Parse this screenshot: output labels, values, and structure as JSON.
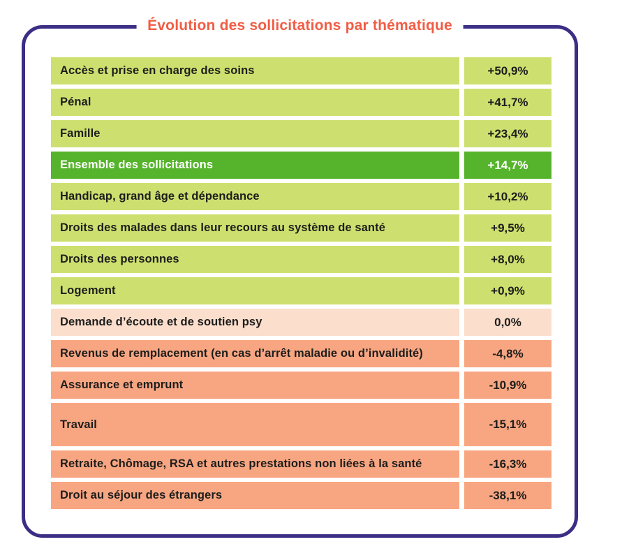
{
  "title": "Évolution des sollicitations par thématique",
  "colors": {
    "border_purple": "#3b2e85",
    "title_coral": "#f15c44",
    "positive_green": "#cde06f",
    "total_green": "#56b42c",
    "zero_peach": "#fcdecd",
    "negative_salmon": "#f8a682",
    "text_dark": "#1d1d1b",
    "total_text": "#ffffff"
  },
  "rows": [
    {
      "label": "Accès et prise en charge des soins",
      "value": "+50,9%",
      "variant": "pos"
    },
    {
      "label": "Pénal",
      "value": "+41,7%",
      "variant": "pos"
    },
    {
      "label": "Famille",
      "value": "+23,4%",
      "variant": "pos"
    },
    {
      "label": "Ensemble des sollicitations",
      "value": "+14,7%",
      "variant": "total"
    },
    {
      "label": "Handicap, grand âge et dépendance",
      "value": "+10,2%",
      "variant": "pos"
    },
    {
      "label": "Droits des malades dans leur recours au système de santé",
      "value": "+9,5%",
      "variant": "pos"
    },
    {
      "label": "Droits des personnes",
      "value": "+8,0%",
      "variant": "pos"
    },
    {
      "label": "Logement",
      "value": "+0,9%",
      "variant": "pos"
    },
    {
      "label": "Demande d’écoute et de soutien psy",
      "value": "0,0%",
      "variant": "zero"
    },
    {
      "label": "Revenus de remplacement (en cas d’arrêt maladie ou d’invalidité)",
      "value": "-4,8%",
      "variant": "neg"
    },
    {
      "label": "Assurance et emprunt",
      "value": "-10,9%",
      "variant": "neg"
    },
    {
      "label": "Travail",
      "value": "-15,1%",
      "variant": "neg",
      "tall": true
    },
    {
      "label": "Retraite, Chômage, RSA et autres prestations non liées à la santé",
      "value": "-16,3%",
      "variant": "neg"
    },
    {
      "label": "Droit au séjour des étrangers",
      "value": "-38,1%",
      "variant": "neg"
    }
  ],
  "chart_data": {
    "type": "table",
    "title": "Évolution des sollicitations par thématique",
    "categories": [
      "Accès et prise en charge des soins",
      "Pénal",
      "Famille",
      "Ensemble des sollicitations",
      "Handicap, grand âge et dépendance",
      "Droits des malades dans leur recours au système de santé",
      "Droits des personnes",
      "Logement",
      "Demande d’écoute et de soutien psy",
      "Revenus de remplacement (en cas d’arrêt maladie ou d’invalidité)",
      "Assurance et emprunt",
      "Travail",
      "Retraite, Chômage, RSA et autres prestations non liées à la santé",
      "Droit au séjour des étrangers"
    ],
    "values": [
      50.9,
      41.7,
      23.4,
      14.7,
      10.2,
      9.5,
      8.0,
      0.9,
      0.0,
      -4.8,
      -10.9,
      -15.1,
      -16.3,
      -38.1
    ],
    "value_labels": [
      "+50,9%",
      "+41,7%",
      "+23,4%",
      "+14,7%",
      "+10,2%",
      "+9,5%",
      "+8,0%",
      "+0,9%",
      "0,0%",
      "-4,8%",
      "-10,9%",
      "-15,1%",
      "-16,3%",
      "-38,1%"
    ],
    "unit": "%",
    "color_coding": "green = increase, pale peach = no change, salmon = decrease, dark green = overall total row",
    "legend_position": "none",
    "grid": false
  }
}
